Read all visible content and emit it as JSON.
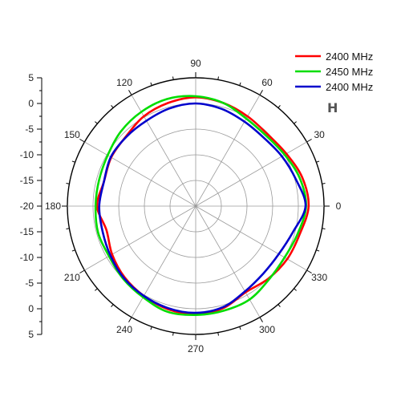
{
  "chart_data": {
    "type": "polar",
    "title": "",
    "angle_unit": "degrees",
    "angle_labels": [
      "90",
      "60",
      "30",
      "0",
      "330",
      "300",
      "270",
      "240",
      "210",
      "180",
      "150",
      "120"
    ],
    "radial_axis": {
      "range": [
        -20,
        5
      ],
      "ticks": [
        "5",
        "0",
        "-5",
        "-10",
        "-15",
        "-20",
        "-15",
        "-10",
        "-5",
        "0",
        "5"
      ]
    },
    "grid": true,
    "legend": {
      "placement": "top-right"
    },
    "angles_deg": [
      0,
      15,
      30,
      45,
      60,
      75,
      90,
      105,
      120,
      135,
      150,
      165,
      180,
      195,
      210,
      225,
      240,
      255,
      270,
      285,
      300,
      315,
      330,
      345
    ],
    "series": [
      {
        "name": "2400 MHz",
        "color": "#ff0000",
        "values": [
          2.0,
          1.5,
          0.4,
          -0.2,
          0.2,
          0.8,
          1.2,
          0.8,
          0.2,
          -0.8,
          -1.0,
          -1.5,
          -0.8,
          -2.0,
          -1.2,
          -0.4,
          0.2,
          0.8,
          1.0,
          0.6,
          -0.6,
          0.0,
          0.6,
          1.0
        ]
      },
      {
        "name": "2450 MHz",
        "color": "#00dd00",
        "values": [
          1.5,
          1.0,
          0.0,
          -0.6,
          -0.3,
          0.8,
          1.4,
          1.6,
          1.2,
          0.6,
          -0.2,
          -0.5,
          -0.5,
          -0.3,
          -0.5,
          0.0,
          0.5,
          1.3,
          1.2,
          1.1,
          1.0,
          0.2,
          0.0,
          0.6
        ]
      },
      {
        "name": "2400 MHz",
        "color": "#0000cc",
        "values": [
          1.4,
          0.2,
          -0.6,
          -1.2,
          -1.0,
          -0.4,
          0.0,
          -0.3,
          -0.8,
          -0.9,
          -0.9,
          -1.5,
          -1.2,
          -1.2,
          -0.8,
          -0.2,
          0.2,
          0.6,
          0.8,
          0.4,
          -0.8,
          -1.4,
          -1.3,
          -0.4
        ]
      }
    ],
    "marker_label": "H"
  }
}
